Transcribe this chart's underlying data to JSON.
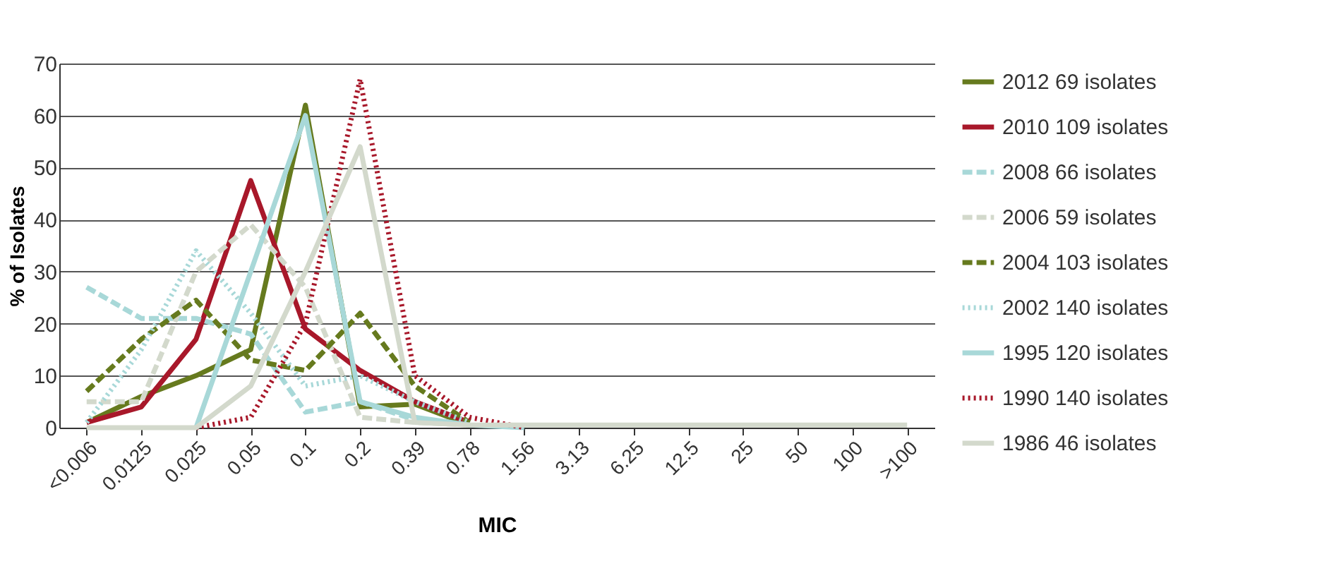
{
  "chart_data": {
    "type": "line",
    "xlabel": "MIC",
    "ylabel": "% of Isolates",
    "categories": [
      "<0.006",
      "0.0125",
      "0.025",
      "0.05",
      "0.1",
      "0.2",
      "0.39",
      "0.78",
      "1.56",
      "3.13",
      "6.25",
      "12.5",
      "25",
      "50",
      "100",
      ">100"
    ],
    "ylim": [
      0,
      70
    ],
    "yticks": [
      0,
      10,
      20,
      30,
      40,
      50,
      60,
      70
    ],
    "grid": "y",
    "legend": "right",
    "marker": "none",
    "series": [
      {
        "name": "2012 69 isolates",
        "color": "#667a1e",
        "line_style": "solid",
        "values": [
          1,
          6,
          10,
          15,
          62,
          4,
          4.5,
          0.5,
          null,
          null,
          null,
          null,
          null,
          null,
          null,
          null
        ]
      },
      {
        "name": "2010 109 isolates",
        "color": "#a8182a",
        "line_style": "solid",
        "values": [
          1,
          4,
          17,
          47.5,
          19,
          11,
          5,
          1,
          null,
          null,
          null,
          null,
          null,
          null,
          null,
          null
        ]
      },
      {
        "name": "2008 66 isolates",
        "color": "#a8d8d8",
        "line_style": "dashed",
        "values": [
          27,
          21,
          21,
          18,
          3,
          5,
          1.5,
          0.5,
          null,
          null,
          null,
          null,
          null,
          null,
          null,
          null
        ]
      },
      {
        "name": "2006 59 isolates",
        "color": "#d3d9cc",
        "line_style": "dashed",
        "values": [
          5,
          5,
          30,
          39,
          27,
          2,
          1,
          0.5,
          null,
          null,
          null,
          null,
          null,
          null,
          null,
          null
        ]
      },
      {
        "name": "2004 103 isolates",
        "color": "#667a1e",
        "line_style": "dashed",
        "values": [
          7,
          17,
          24.5,
          13,
          11,
          22,
          8,
          1,
          null,
          null,
          null,
          null,
          null,
          null,
          null,
          null
        ]
      },
      {
        "name": "2002 140 isolates",
        "color": "#a8d8d8",
        "line_style": "dotted",
        "values": [
          1,
          15,
          34,
          22,
          8,
          10,
          5,
          1,
          null,
          null,
          null,
          null,
          null,
          null,
          null,
          null
        ]
      },
      {
        "name": "1995 120 isolates",
        "color": "#a8d8d8",
        "line_style": "solid",
        "values": [
          null,
          null,
          0,
          30,
          60,
          5,
          2,
          0.5,
          0,
          null,
          null,
          null,
          null,
          null,
          null,
          null
        ]
      },
      {
        "name": "1990 140 isolates",
        "color": "#a8182a",
        "line_style": "dotted",
        "values": [
          null,
          null,
          0,
          2,
          20,
          67,
          10,
          2,
          0,
          null,
          null,
          null,
          null,
          null,
          null,
          null
        ]
      },
      {
        "name": "1986 46 isolates",
        "color": "#d3d9cc",
        "line_style": "solid",
        "values": [
          0,
          0,
          0,
          8,
          30,
          54,
          1,
          0.5,
          0.5,
          0.5,
          0.5,
          0.5,
          0.5,
          0.5,
          0.5,
          0.5
        ]
      }
    ]
  }
}
